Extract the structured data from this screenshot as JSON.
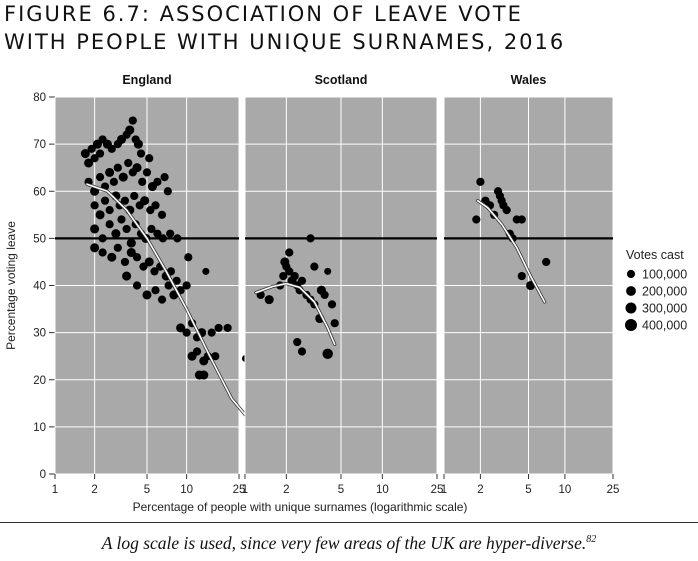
{
  "figure": {
    "title_line1": "FIGURE 6.7: ASSOCIATION OF LEAVE VOTE",
    "title_line2": "WITH PEOPLE WITH UNIQUE SURNAMES, 2016",
    "caption": "A log scale is used, since very few areas of the UK are hyper-diverse.",
    "caption_note": "82"
  },
  "colors": {
    "panel_bg": "#a9a9a9",
    "grid": "#ffffff",
    "points": "#000000",
    "trend": "#ffffff",
    "reference_line": "#000000"
  },
  "chart_data": {
    "type": "scatter",
    "xlabel": "Percentage of people with unique surnames (logarithmic scale)",
    "ylabel": "Percentage voting leave",
    "x_scale": "log",
    "xlim": [
      1,
      25
    ],
    "ylim": [
      0,
      80
    ],
    "x_ticks": [
      1,
      2,
      5,
      10,
      25
    ],
    "y_ticks": [
      0,
      10,
      20,
      30,
      40,
      50,
      60,
      70,
      80
    ],
    "reference_line_y": 50,
    "grid": true,
    "legend": {
      "title": "Votes cast",
      "position": "right",
      "entries": [
        {
          "label": "100,000",
          "value": 100000
        },
        {
          "label": "200,000",
          "value": 200000
        },
        {
          "label": "300,000",
          "value": 300000
        },
        {
          "label": "400,000",
          "value": 400000
        }
      ]
    },
    "panels": [
      {
        "name": "England",
        "trend": [
          [
            1.75,
            61.5
          ],
          [
            2.5,
            60
          ],
          [
            3.5,
            56
          ],
          [
            5,
            50
          ],
          [
            7,
            43
          ],
          [
            10,
            35
          ],
          [
            15,
            25
          ],
          [
            22,
            16
          ],
          [
            30,
            11.5
          ]
        ],
        "points": [
          [
            1.7,
            68,
            150000
          ],
          [
            1.8,
            66,
            150000
          ],
          [
            1.9,
            69,
            100000
          ],
          [
            2.0,
            67,
            100000
          ],
          [
            2.1,
            70,
            150000
          ],
          [
            2.2,
            68,
            100000
          ],
          [
            2.3,
            71,
            100000
          ],
          [
            2.5,
            70,
            150000
          ],
          [
            2.7,
            69,
            100000
          ],
          [
            3.0,
            70,
            100000
          ],
          [
            3.2,
            71,
            150000
          ],
          [
            3.5,
            72,
            100000
          ],
          [
            3.7,
            73,
            150000
          ],
          [
            3.9,
            75,
            100000
          ],
          [
            4.1,
            71,
            100000
          ],
          [
            4.3,
            70,
            150000
          ],
          [
            4.5,
            68,
            100000
          ],
          [
            5.2,
            67,
            100000
          ],
          [
            6.8,
            63,
            100000
          ],
          [
            7.2,
            60,
            100000
          ],
          [
            1.8,
            62,
            100000
          ],
          [
            2.0,
            60,
            150000
          ],
          [
            2.2,
            63,
            100000
          ],
          [
            2.4,
            61,
            100000
          ],
          [
            2.6,
            64,
            150000
          ],
          [
            2.8,
            62,
            100000
          ],
          [
            3.0,
            65,
            100000
          ],
          [
            3.3,
            63,
            150000
          ],
          [
            3.6,
            66,
            100000
          ],
          [
            3.9,
            64,
            100000
          ],
          [
            4.2,
            65,
            150000
          ],
          [
            4.6,
            62,
            100000
          ],
          [
            5.0,
            64,
            100000
          ],
          [
            5.5,
            61,
            150000
          ],
          [
            6.0,
            62,
            100000
          ],
          [
            2.0,
            57,
            100000
          ],
          [
            2.2,
            55,
            150000
          ],
          [
            2.4,
            58,
            100000
          ],
          [
            2.6,
            56,
            100000
          ],
          [
            2.9,
            59,
            150000
          ],
          [
            3.1,
            57,
            100000
          ],
          [
            3.4,
            58,
            100000
          ],
          [
            3.7,
            56,
            150000
          ],
          [
            4.0,
            59,
            100000
          ],
          [
            4.4,
            57,
            100000
          ],
          [
            4.8,
            58,
            150000
          ],
          [
            5.3,
            56,
            100000
          ],
          [
            5.8,
            57,
            100000
          ],
          [
            6.5,
            55,
            100000
          ],
          [
            2.0,
            52,
            150000
          ],
          [
            2.3,
            50,
            100000
          ],
          [
            2.6,
            53,
            100000
          ],
          [
            2.9,
            51,
            150000
          ],
          [
            3.2,
            54,
            100000
          ],
          [
            3.5,
            52,
            100000
          ],
          [
            3.8,
            49,
            150000
          ],
          [
            4.1,
            53,
            100000
          ],
          [
            4.5,
            51,
            100000
          ],
          [
            4.9,
            50,
            150000
          ],
          [
            5.4,
            52,
            100000
          ],
          [
            6.0,
            51,
            100000
          ],
          [
            6.6,
            50,
            100000
          ],
          [
            7.5,
            51,
            100000
          ],
          [
            8.5,
            50,
            100000
          ],
          [
            2.0,
            48,
            150000
          ],
          [
            2.3,
            47,
            100000
          ],
          [
            2.7,
            46,
            150000
          ],
          [
            3.0,
            48,
            100000
          ],
          [
            3.4,
            45,
            100000
          ],
          [
            3.8,
            47,
            150000
          ],
          [
            4.2,
            46,
            100000
          ],
          [
            4.7,
            44,
            100000
          ],
          [
            5.2,
            45,
            150000
          ],
          [
            5.7,
            43,
            100000
          ],
          [
            6.3,
            44,
            100000
          ],
          [
            7.0,
            42,
            150000
          ],
          [
            7.6,
            43,
            100000
          ],
          [
            8.4,
            41,
            100000
          ],
          [
            10.3,
            46,
            100000
          ],
          [
            3.5,
            42,
            150000
          ],
          [
            4.2,
            40,
            100000
          ],
          [
            5.0,
            38,
            150000
          ],
          [
            5.8,
            39,
            100000
          ],
          [
            6.5,
            37,
            100000
          ],
          [
            7.3,
            40,
            100000
          ],
          [
            8.0,
            38,
            150000
          ],
          [
            9.0,
            39,
            100000
          ],
          [
            10.0,
            40,
            100000
          ],
          [
            9.0,
            31,
            150000
          ],
          [
            10.0,
            30,
            100000
          ],
          [
            11.0,
            32,
            100000
          ],
          [
            12.0,
            29,
            100000
          ],
          [
            13.0,
            30,
            150000
          ],
          [
            15.5,
            30,
            100000
          ],
          [
            17.5,
            31,
            100000
          ],
          [
            20.5,
            31,
            100000
          ],
          [
            11.0,
            25,
            150000
          ],
          [
            12.0,
            26,
            100000
          ],
          [
            13.5,
            24,
            150000
          ],
          [
            14.5,
            25,
            100000
          ],
          [
            16.5,
            25,
            100000
          ],
          [
            12.5,
            21,
            150000
          ],
          [
            13.5,
            21,
            150000
          ],
          [
            14.0,
            43,
            50000
          ],
          [
            28.0,
            24.5,
            50000
          ]
        ]
      },
      {
        "name": "Scotland",
        "trend": [
          [
            1.2,
            38.5
          ],
          [
            1.6,
            39.8
          ],
          [
            2.0,
            40.4
          ],
          [
            2.5,
            39.6
          ],
          [
            3.2,
            36.5
          ],
          [
            4.0,
            31
          ],
          [
            4.5,
            27.5
          ]
        ],
        "points": [
          [
            1.3,
            38,
            100000
          ],
          [
            1.5,
            37,
            150000
          ],
          [
            1.8,
            40,
            100000
          ],
          [
            1.9,
            42,
            100000
          ],
          [
            1.95,
            45,
            150000
          ],
          [
            2.0,
            44,
            100000
          ],
          [
            2.1,
            43,
            100000
          ],
          [
            2.1,
            47,
            100000
          ],
          [
            2.2,
            41,
            150000
          ],
          [
            2.3,
            42,
            100000
          ],
          [
            2.4,
            40,
            100000
          ],
          [
            2.5,
            39,
            100000
          ],
          [
            2.6,
            41,
            100000
          ],
          [
            2.8,
            38,
            100000
          ],
          [
            3.0,
            37,
            100000
          ],
          [
            3.2,
            36,
            100000
          ],
          [
            3.5,
            33,
            150000
          ],
          [
            3.8,
            38,
            100000
          ],
          [
            4.3,
            36,
            100000
          ],
          [
            4.5,
            32,
            100000
          ],
          [
            2.4,
            28,
            100000
          ],
          [
            2.6,
            26,
            100000
          ],
          [
            3.0,
            50,
            100000
          ],
          [
            3.6,
            39,
            150000
          ],
          [
            4.0,
            25.5,
            250000
          ],
          [
            4.0,
            43,
            50000
          ],
          [
            3.2,
            44,
            100000
          ]
        ]
      },
      {
        "name": "Wales",
        "trend": [
          [
            1.9,
            58
          ],
          [
            2.3,
            56.5
          ],
          [
            3.0,
            53
          ],
          [
            4.0,
            48
          ],
          [
            5.2,
            42
          ],
          [
            6.8,
            36.5
          ]
        ],
        "points": [
          [
            1.85,
            54,
            100000
          ],
          [
            2.0,
            62,
            100000
          ],
          [
            2.2,
            58,
            100000
          ],
          [
            2.4,
            57,
            100000
          ],
          [
            2.6,
            55,
            100000
          ],
          [
            2.8,
            60,
            100000
          ],
          [
            3.0,
            58,
            100000
          ],
          [
            3.3,
            56,
            100000
          ],
          [
            3.5,
            51,
            100000
          ],
          [
            3.7,
            50,
            100000
          ],
          [
            4.0,
            54,
            100000
          ],
          [
            4.4,
            54,
            100000
          ],
          [
            4.4,
            42,
            100000
          ],
          [
            5.2,
            40,
            150000
          ],
          [
            7.0,
            45,
            100000
          ],
          [
            2.9,
            59,
            100000
          ],
          [
            3.1,
            57,
            100000
          ]
        ]
      }
    ]
  }
}
